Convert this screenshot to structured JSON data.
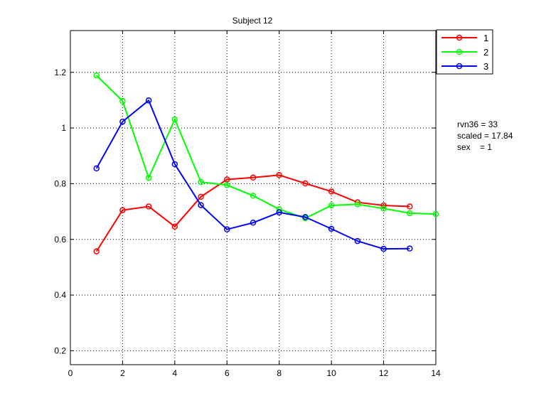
{
  "chart_data": {
    "type": "line",
    "title": "Subject 12",
    "xlabel": "",
    "ylabel": "",
    "xlim": [
      0,
      14
    ],
    "ylim": [
      0.15,
      1.35
    ],
    "xticks": [
      0,
      2,
      4,
      6,
      8,
      10,
      12,
      14
    ],
    "xtick_labels": [
      "0",
      "2",
      "4",
      "6",
      "8",
      "10",
      "12",
      "14"
    ],
    "yticks": [
      0.2,
      0.4,
      0.6,
      0.8,
      1.0,
      1.2
    ],
    "ytick_labels": [
      "0.2",
      "0.4",
      "0.6",
      "0.8",
      "1",
      "1.2"
    ],
    "grid": true,
    "legend_position": "outside-top-right",
    "marker": "circle",
    "series": [
      {
        "name": "1",
        "color": "#ff0000",
        "x": [
          1,
          2,
          3,
          4,
          5,
          6,
          7,
          8,
          9,
          10,
          11,
          12,
          13
        ],
        "values": [
          0.557,
          0.705,
          0.718,
          0.646,
          0.753,
          0.815,
          0.822,
          0.831,
          0.801,
          0.772,
          0.733,
          0.722,
          0.718
        ]
      },
      {
        "name": "2",
        "color": "#00ff00",
        "x": [
          1,
          2,
          3,
          4,
          5,
          6,
          7,
          8,
          9,
          10,
          11,
          12,
          13,
          14
        ],
        "values": [
          1.189,
          1.097,
          0.821,
          1.031,
          0.806,
          0.795,
          0.757,
          0.708,
          0.676,
          0.722,
          0.726,
          0.711,
          0.694,
          0.691
        ]
      },
      {
        "name": "3",
        "color": "#0000ff",
        "x": [
          1,
          2,
          3,
          4,
          5,
          6,
          7,
          8,
          9,
          10,
          11,
          12,
          13
        ],
        "values": [
          0.855,
          1.023,
          1.099,
          0.87,
          0.723,
          0.636,
          0.66,
          0.697,
          0.68,
          0.638,
          0.594,
          0.566,
          0.567
        ]
      }
    ]
  },
  "annotations": [
    "rvn36 = 33",
    "scaled = 17.84",
    "sex    = 1"
  ]
}
